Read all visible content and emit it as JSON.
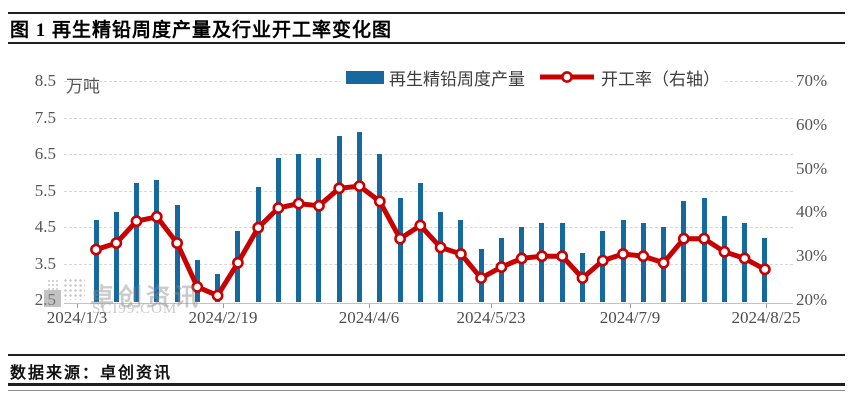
{
  "title": "图 1 再生精铅周度产量及行业开工率变化图",
  "footer": {
    "source_label": "数据来源：卓创资讯"
  },
  "watermark": {
    "brand": "卓创资讯",
    "site": "SCI99.COM"
  },
  "legend": {
    "bar_label": "再生精铅周度产量",
    "line_label": "开工率（右轴）"
  },
  "colors": {
    "bar": "#16699E",
    "line": "#C80000",
    "marker_fill": "#FFFFFF",
    "gridline": "#D8D8D8",
    "axis_text": "#555555"
  },
  "chart_data": {
    "type": "bar+line",
    "title": "图 1 再生精铅周度产量及行业开工率变化图",
    "left_axis": {
      "unit": "万吨",
      "min": 2.5,
      "max": 8.5,
      "tick_labels": [
        "8.5",
        "7.5",
        "6.5",
        "5.5",
        "4.5",
        "3.5",
        "2.5"
      ]
    },
    "right_axis": {
      "min": 20,
      "max": 70,
      "tick_labels": [
        "70%",
        "60%",
        "50%",
        "40%",
        "30%",
        "20%"
      ]
    },
    "x_tick_labels": [
      "2024/1/3",
      "2024/2/19",
      "2024/4/6",
      "2024/5/23",
      "2024/7/9",
      "2024/8/25"
    ],
    "grid": true,
    "legend_position": "top",
    "series": [
      {
        "name": "再生精铅周度产量",
        "type": "bar",
        "axis": "left",
        "color": "#16699E",
        "values": [
          4.7,
          4.9,
          5.7,
          5.8,
          5.1,
          3.6,
          3.2,
          4.4,
          5.6,
          6.4,
          6.5,
          6.4,
          7.0,
          7.1,
          6.5,
          5.3,
          5.7,
          4.9,
          4.7,
          3.9,
          4.2,
          4.5,
          4.6,
          4.6,
          3.8,
          4.4,
          4.7,
          4.6,
          4.5,
          5.2,
          5.3,
          4.8,
          4.6,
          4.2
        ]
      },
      {
        "name": "开工率（右轴）",
        "type": "line",
        "axis": "right",
        "color": "#C80000",
        "values": [
          31.5,
          33,
          38,
          39,
          33,
          23,
          21,
          28.5,
          36.5,
          41,
          42,
          41.5,
          45.5,
          46,
          42.5,
          34,
          37,
          32,
          30.5,
          25,
          27.5,
          29.5,
          30,
          30,
          25,
          29,
          30.5,
          30,
          28.5,
          34,
          34,
          31,
          29.5,
          27
        ]
      }
    ]
  }
}
